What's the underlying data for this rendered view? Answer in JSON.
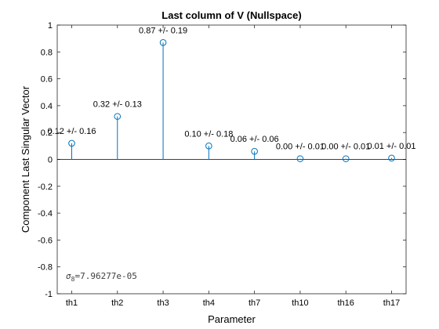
{
  "chart_data": {
    "type": "stem",
    "title": "Last column of V (Nullspace)",
    "xlabel": "Parameter",
    "ylabel": "Component Last Singular Vector",
    "categories": [
      "th1",
      "th2",
      "th3",
      "th4",
      "th7",
      "th10",
      "th16",
      "th17"
    ],
    "values": [
      0.12,
      0.32,
      0.87,
      0.1,
      0.06,
      0.005,
      0.005,
      0.01
    ],
    "data_labels": [
      "0.12 +/- 0.16",
      "0.32 +/- 0.13",
      "0.87 +/- 0.19",
      "0.10 +/- 0.18",
      "0.06 +/- 0.06",
      "0.00 +/- 0.01",
      "0.00 +/- 0.01",
      "0.01 +/- 0.01"
    ],
    "ylim": [
      -1,
      1
    ],
    "yticks": [
      -1,
      -0.8,
      -0.6,
      -0.4,
      -0.2,
      0,
      0.2,
      0.4,
      0.6,
      0.8,
      1
    ],
    "ytick_labels": [
      "-1",
      "-0.8",
      "-0.6",
      "-0.4",
      "-0.2",
      "0",
      "0.2",
      "0.4",
      "0.6",
      "0.8",
      "1"
    ],
    "grid": false,
    "marker": "circle",
    "color": "#0072BD",
    "annotation": {
      "symbol": "σ",
      "subscript": "8",
      "text": "=7.96277e-05"
    }
  }
}
